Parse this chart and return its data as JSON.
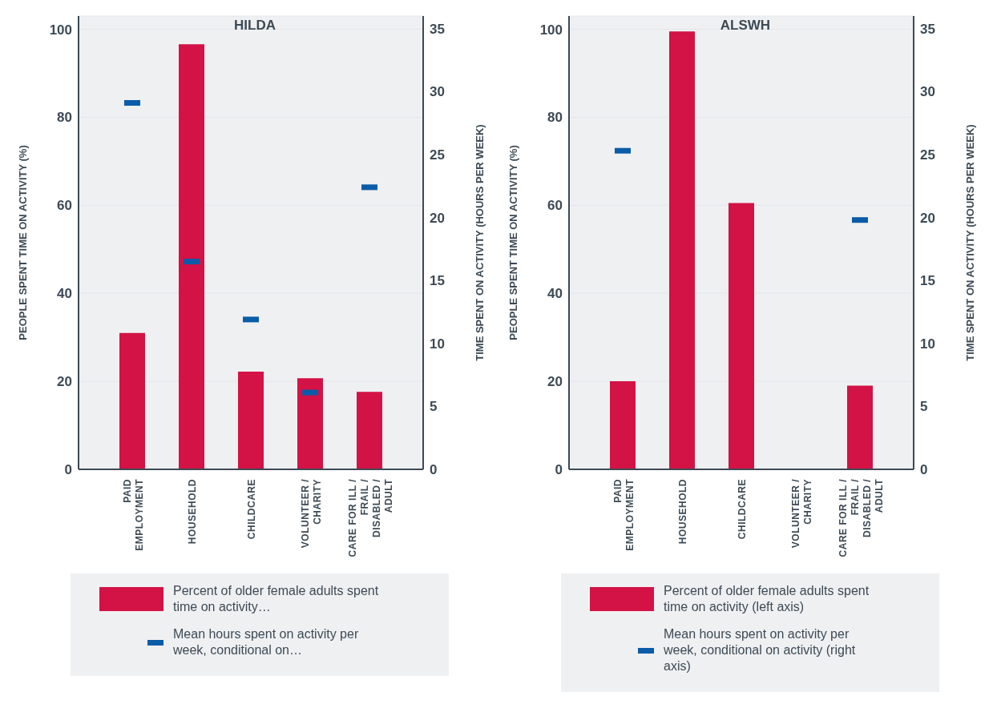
{
  "chart_data": [
    {
      "type": "bar",
      "title": "HILDA",
      "categories": [
        "PAID EMPLOYMENT",
        "HOUSEHOLD",
        "CHILDCARE",
        "VOLUNTEER / CHARITY",
        "CARE FOR ILL / FRAIL / DISABLED / ADULT"
      ],
      "series": [
        {
          "name": "Percent of older female adults spent time on activity…",
          "color": "#d31245",
          "values": [
            31.0,
            96.6,
            22.2,
            20.7,
            17.6
          ]
        },
        {
          "name": "Mean hours spent on activity per week, conditional on…",
          "type": "scatter",
          "axis": "y2",
          "color": "#0a5ca8",
          "values": [
            29.1,
            16.5,
            11.9,
            6.1,
            22.4
          ]
        }
      ],
      "ylabel": "PEOPLE SPENT TIME ON ACTIVITY (%)",
      "y2label": "TIME SPENT ON ACTIVITY (HOURS PER WEEK)",
      "ylim": [
        0,
        103
      ],
      "yticks": [
        0,
        20,
        40,
        60,
        80,
        100
      ],
      "y2lim": [
        0,
        36
      ],
      "y2ticks": [
        0,
        5,
        10,
        15,
        20,
        25,
        30,
        35
      ],
      "grid": "y",
      "legend": "bottom"
    },
    {
      "type": "bar",
      "title": "ALSWH",
      "categories": [
        "PAID EMPLOYMENT",
        "HOUSEHOLD",
        "CHILDCARE",
        "VOLUNTEER / CHARITY",
        "CARE FOR ILL / FRAIL / DISABLED / ADULT"
      ],
      "series": [
        {
          "name": "Percent of older female adults spent time on activity (left axis)",
          "color": "#d31245",
          "values": [
            20.0,
            99.5,
            60.5,
            null,
            19.0
          ]
        },
        {
          "name": "Mean hours spent on activity per week, conditional on activity (right axis)",
          "type": "scatter",
          "axis": "y2",
          "color": "#0a5ca8",
          "values": [
            25.3,
            null,
            null,
            null,
            19.8
          ]
        }
      ],
      "ylabel": "PEOPLE SPENT TIME ON ACTIVITY (%)",
      "y2label": "TIME SPENT ON ACTIVITY (HOURS PER WEEK)",
      "ylim": [
        0,
        103
      ],
      "yticks": [
        0,
        20,
        40,
        60,
        80,
        100
      ],
      "y2lim": [
        0,
        36
      ],
      "y2ticks": [
        0,
        5,
        10,
        15,
        20,
        25,
        30,
        35
      ],
      "grid": "y",
      "legend": "bottom"
    }
  ]
}
